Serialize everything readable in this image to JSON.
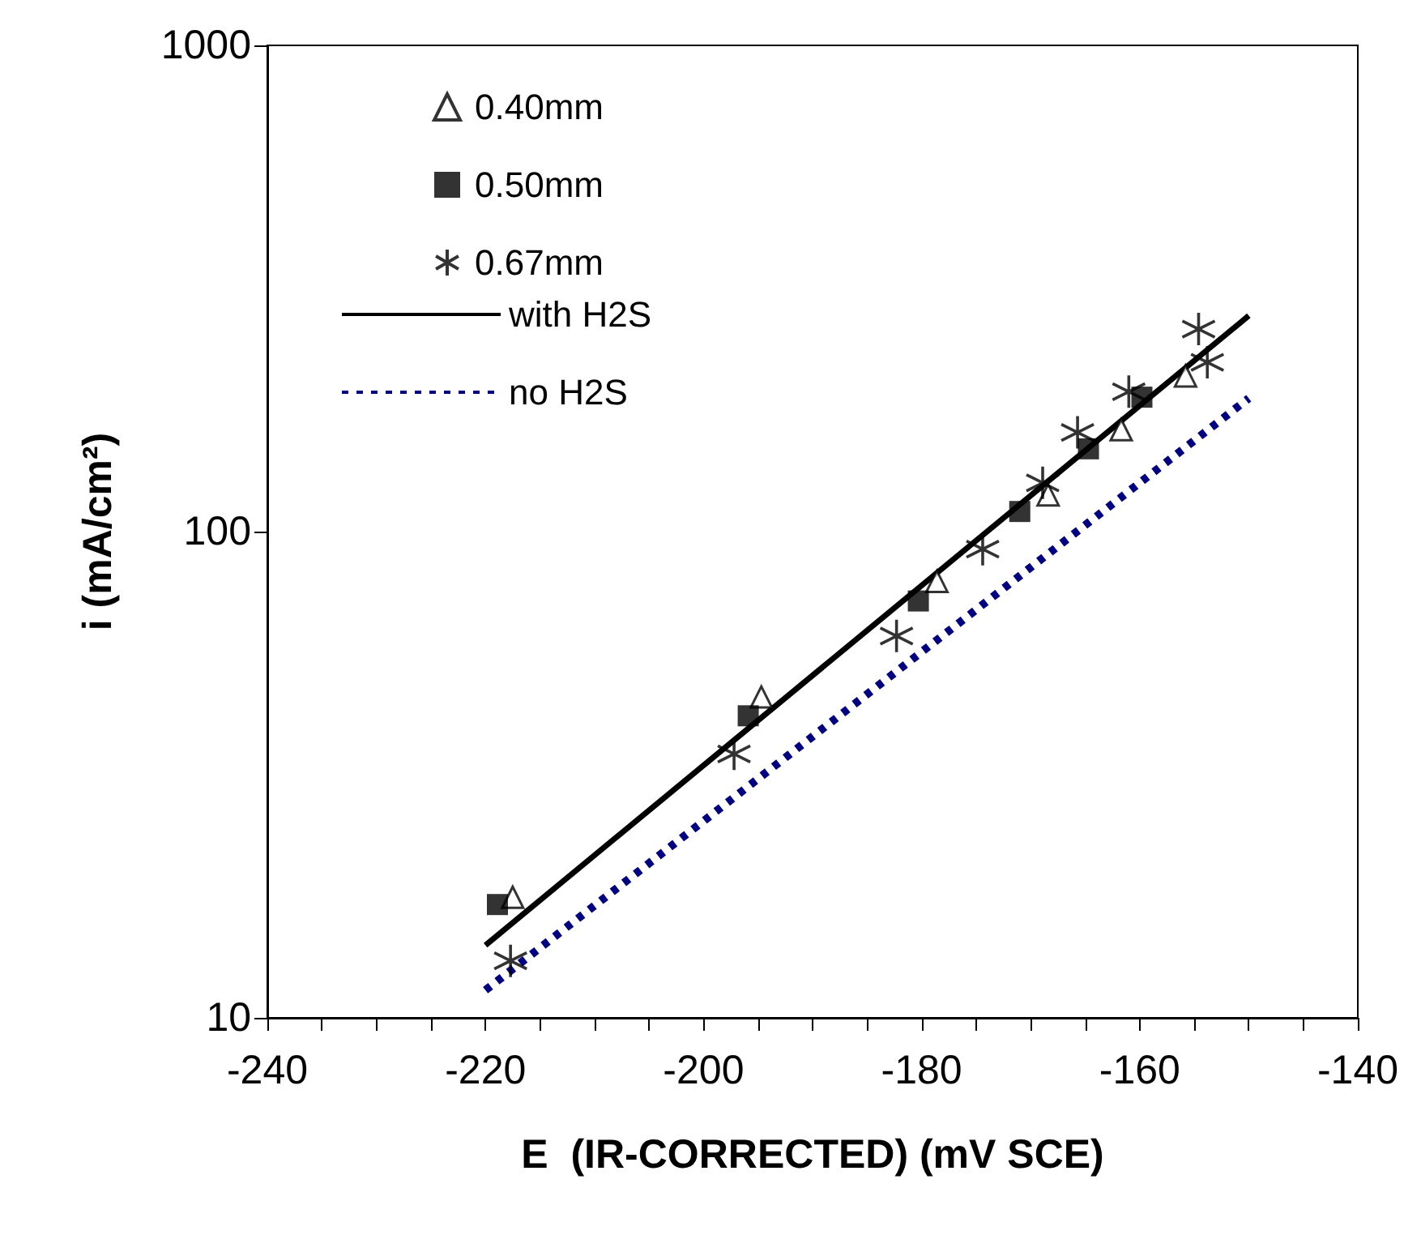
{
  "chart_data": {
    "type": "scatter",
    "xlabel": "E  (IR-CORRECTED) (mV SCE)",
    "ylabel": "i (mA/cm²)",
    "xlim": [
      -240,
      -140
    ],
    "xticks": [
      -240,
      -220,
      -200,
      -180,
      -160,
      -140
    ],
    "ylim": [
      10,
      1000
    ],
    "yticks": [
      10,
      100,
      1000
    ],
    "log": "y",
    "grid": false,
    "legend": "top left",
    "series": [
      {
        "name": "0.40mm",
        "color": "#000000",
        "marker": "triangle",
        "x": [
          -217.5,
          -194.7,
          -178.6,
          -168.4,
          -161.7,
          -155.8
        ],
        "values": [
          17.7,
          45.7,
          79,
          119,
          162,
          209
        ]
      },
      {
        "name": "0.50mm",
        "color": "#000000",
        "marker": "square",
        "x": [
          -218.9,
          -195.9,
          -180.3,
          -171.0,
          -164.7,
          -159.8
        ],
        "values": [
          17.1,
          41.8,
          72,
          110,
          148,
          189
        ]
      },
      {
        "name": "0.67mm",
        "color": "#000000",
        "marker": "cross",
        "x": [
          -217.7,
          -197.2,
          -182.3,
          -174.4,
          -168.9,
          -165.7,
          -161.0,
          -154.6,
          -153.8
        ],
        "values": [
          13.1,
          34.9,
          61,
          92,
          126,
          160,
          194,
          261,
          223
        ]
      },
      {
        "name": "with H2S",
        "type": "line",
        "color": "#000000",
        "marker": "none",
        "line_style": "solid",
        "x": [
          -220,
          -150
        ],
        "values": [
          14.1,
          278
        ]
      },
      {
        "name": "no H2S",
        "type": "line",
        "color": "#000080",
        "marker": "none",
        "line_style": "dashed",
        "x": [
          -220,
          -150
        ],
        "values": [
          11.4,
          188
        ]
      }
    ]
  }
}
